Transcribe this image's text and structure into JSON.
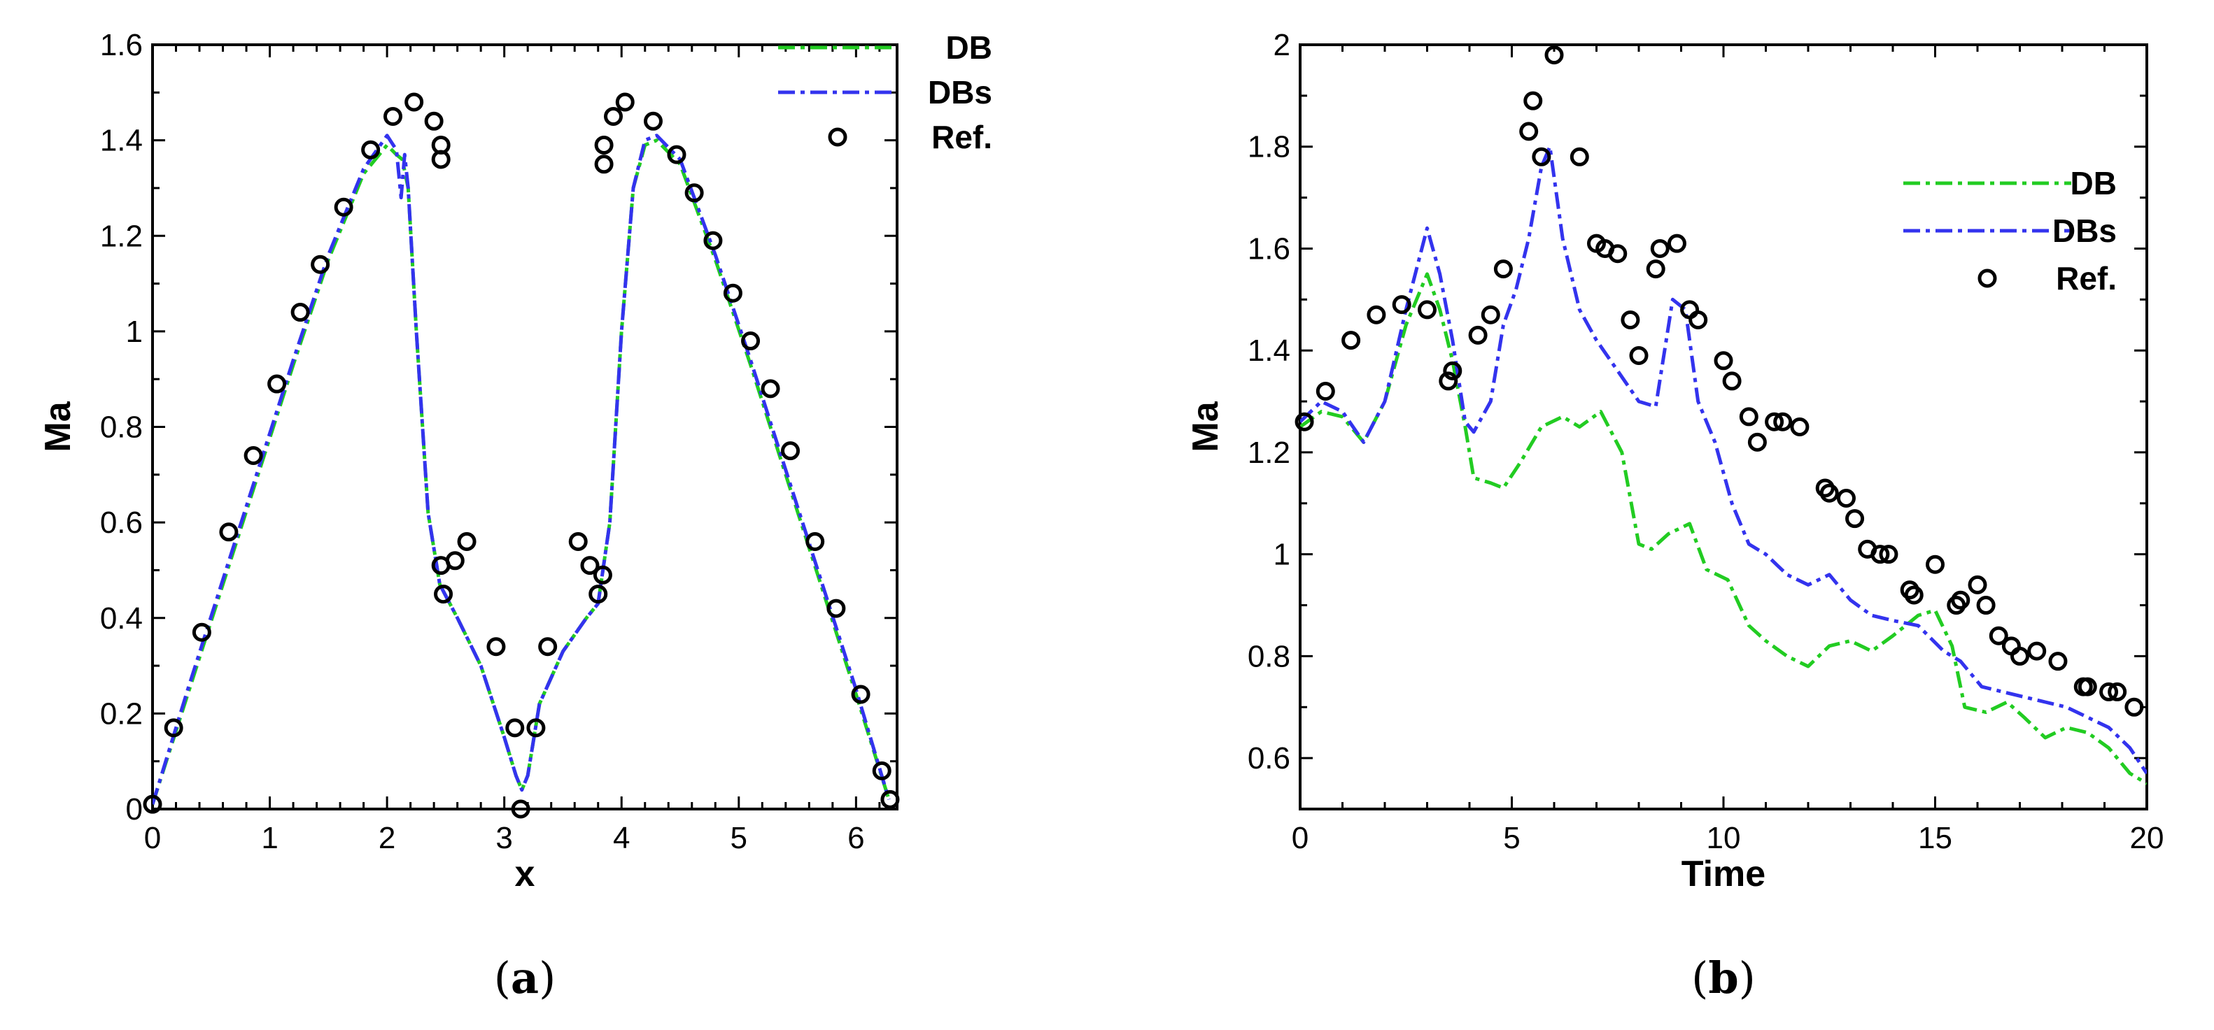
{
  "colors": {
    "db": "#22cc22",
    "dbs": "#3333ee",
    "ref": "#000000"
  },
  "chart_data": [
    {
      "type": "line",
      "panel": "a",
      "caption_open": "(",
      "caption_letter": "a",
      "caption_close": ")",
      "xlabel": "x",
      "ylabel": "Ma",
      "xlim": [
        0,
        6.35
      ],
      "ylim": [
        0,
        1.6
      ],
      "xticks": [
        0,
        1,
        2,
        3,
        4,
        5,
        6
      ],
      "xtick_labels": [
        "0",
        "1",
        "2",
        "3",
        "4",
        "5",
        "6"
      ],
      "yticks": [
        0,
        0.2,
        0.4,
        0.6,
        0.8,
        1,
        1.2,
        1.4,
        1.6
      ],
      "ytick_labels": [
        "0",
        "0.2",
        "0.4",
        "0.6",
        "0.8",
        "1",
        "1.2",
        "1.4",
        "1.6"
      ],
      "legend": {
        "position": "top-right",
        "entries": [
          "DB",
          "DBs",
          "Ref."
        ]
      },
      "series": [
        {
          "name": "DB",
          "style": "dash-dot",
          "x": [
            0,
            0.3,
            0.6,
            0.9,
            1.2,
            1.5,
            1.8,
            2.0,
            2.08,
            2.13,
            2.18,
            2.25,
            2.35,
            2.45,
            2.6,
            2.8,
            3.0,
            3.1,
            3.15,
            3.2,
            3.3,
            3.5,
            3.7,
            3.8,
            3.9,
            4.0,
            4.1,
            4.2,
            4.3,
            4.5,
            4.8,
            5.1,
            5.4,
            5.7,
            6.0,
            6.28
          ],
          "y": [
            0.01,
            0.24,
            0.47,
            0.7,
            0.93,
            1.15,
            1.33,
            1.39,
            1.37,
            1.36,
            1.3,
            1.0,
            0.62,
            0.47,
            0.4,
            0.3,
            0.15,
            0.07,
            0.04,
            0.07,
            0.22,
            0.33,
            0.4,
            0.43,
            0.6,
            1.0,
            1.3,
            1.39,
            1.4,
            1.35,
            1.15,
            0.93,
            0.7,
            0.47,
            0.24,
            0.02
          ]
        },
        {
          "name": "DBs",
          "style": "dash-dot",
          "x": [
            0,
            0.3,
            0.6,
            0.9,
            1.2,
            1.5,
            1.8,
            2.0,
            2.08,
            2.12,
            2.15,
            2.18,
            2.25,
            2.35,
            2.45,
            2.6,
            2.8,
            3.0,
            3.1,
            3.15,
            3.2,
            3.3,
            3.5,
            3.7,
            3.8,
            3.9,
            4.0,
            4.1,
            4.2,
            4.3,
            4.5,
            4.8,
            5.1,
            5.4,
            5.7,
            6.0,
            6.28
          ],
          "y": [
            0.01,
            0.25,
            0.48,
            0.71,
            0.94,
            1.16,
            1.34,
            1.41,
            1.38,
            1.28,
            1.37,
            1.3,
            1.0,
            0.62,
            0.47,
            0.4,
            0.3,
            0.15,
            0.07,
            0.04,
            0.07,
            0.22,
            0.33,
            0.4,
            0.43,
            0.6,
            1.0,
            1.3,
            1.4,
            1.41,
            1.36,
            1.16,
            0.94,
            0.71,
            0.48,
            0.25,
            0.02
          ]
        },
        {
          "name": "Ref.",
          "style": "markers",
          "x": [
            0.0,
            0.18,
            0.42,
            0.65,
            0.86,
            1.06,
            1.26,
            1.43,
            1.63,
            1.86,
            2.05,
            2.23,
            2.4,
            2.46,
            2.46,
            2.46,
            2.48,
            2.58,
            2.68,
            2.93,
            3.09,
            3.14,
            3.27,
            3.37,
            3.63,
            3.73,
            3.8,
            3.84,
            3.85,
            3.85,
            3.93,
            4.03,
            4.27,
            4.47,
            4.62,
            4.78,
            4.95,
            5.1,
            5.27,
            5.44,
            5.65,
            5.83,
            6.04,
            6.22,
            6.29
          ],
          "y": [
            0.01,
            0.17,
            0.37,
            0.58,
            0.74,
            0.89,
            1.04,
            1.14,
            1.26,
            1.38,
            1.45,
            1.48,
            1.44,
            1.39,
            1.36,
            0.51,
            0.45,
            0.52,
            0.56,
            0.34,
            0.17,
            0.0,
            0.17,
            0.34,
            0.56,
            0.51,
            0.45,
            0.49,
            1.39,
            1.35,
            1.45,
            1.48,
            1.44,
            1.37,
            1.29,
            1.19,
            1.08,
            0.98,
            0.88,
            0.75,
            0.56,
            0.42,
            0.24,
            0.08,
            0.02
          ]
        }
      ]
    },
    {
      "type": "line",
      "panel": "b",
      "caption_open": "(",
      "caption_letter": "b",
      "caption_close": ")",
      "xlabel": "Time",
      "ylabel": "Ma",
      "xlim": [
        0,
        20
      ],
      "ylim": [
        0.5,
        2.0
      ],
      "xticks": [
        0,
        5,
        10,
        15,
        20
      ],
      "xtick_labels": [
        "0",
        "5",
        "10",
        "15",
        "20"
      ],
      "yticks": [
        0.6,
        0.8,
        1.0,
        1.2,
        1.4,
        1.6,
        1.8,
        2.0
      ],
      "ytick_labels": [
        "0.6",
        "0.8",
        "1",
        "1.2",
        "1.4",
        "1.6",
        "1.8",
        "2"
      ],
      "legend": {
        "position": "top-right",
        "entries": [
          "DB",
          "DBs",
          "Ref."
        ]
      },
      "series": [
        {
          "name": "DB",
          "style": "dash-dot",
          "x": [
            0,
            0.5,
            1.0,
            1.5,
            2.0,
            2.5,
            3.0,
            3.3,
            3.6,
            3.9,
            4.1,
            4.5,
            4.8,
            5.2,
            5.7,
            6.2,
            6.6,
            7.1,
            7.6,
            8.0,
            8.3,
            8.7,
            9.2,
            9.6,
            10.1,
            10.6,
            11.0,
            11.5,
            12.0,
            12.5,
            13.0,
            13.5,
            14.0,
            14.6,
            15.0,
            15.4,
            15.7,
            16.2,
            16.7,
            17.1,
            17.6,
            18.1,
            18.6,
            19.1,
            19.6,
            20.0
          ],
          "y": [
            1.25,
            1.28,
            1.27,
            1.22,
            1.3,
            1.45,
            1.55,
            1.48,
            1.38,
            1.25,
            1.15,
            1.14,
            1.13,
            1.18,
            1.25,
            1.27,
            1.25,
            1.28,
            1.2,
            1.02,
            1.01,
            1.04,
            1.06,
            0.97,
            0.95,
            0.86,
            0.83,
            0.8,
            0.78,
            0.82,
            0.83,
            0.81,
            0.84,
            0.88,
            0.89,
            0.82,
            0.7,
            0.69,
            0.71,
            0.68,
            0.64,
            0.66,
            0.65,
            0.62,
            0.57,
            0.55
          ]
        },
        {
          "name": "DBs",
          "style": "dash-dot",
          "x": [
            0,
            0.5,
            1.0,
            1.5,
            2.0,
            2.5,
            3.0,
            3.3,
            3.6,
            3.9,
            4.1,
            4.5,
            4.8,
            5.1,
            5.4,
            5.7,
            5.9,
            6.2,
            6.6,
            7.0,
            7.5,
            8.0,
            8.4,
            8.8,
            9.1,
            9.4,
            9.8,
            10.2,
            10.6,
            11.0,
            11.5,
            12.0,
            12.5,
            13.0,
            13.5,
            14.0,
            14.6,
            15.2,
            15.6,
            16.1,
            16.6,
            17.1,
            17.6,
            18.1,
            18.6,
            19.1,
            19.6,
            20.0
          ],
          "y": [
            1.26,
            1.3,
            1.28,
            1.22,
            1.3,
            1.48,
            1.64,
            1.55,
            1.42,
            1.26,
            1.24,
            1.3,
            1.45,
            1.52,
            1.62,
            1.76,
            1.8,
            1.62,
            1.48,
            1.42,
            1.36,
            1.3,
            1.29,
            1.5,
            1.48,
            1.3,
            1.22,
            1.1,
            1.02,
            1.0,
            0.96,
            0.94,
            0.96,
            0.91,
            0.88,
            0.87,
            0.86,
            0.81,
            0.79,
            0.74,
            0.73,
            0.72,
            0.71,
            0.7,
            0.68,
            0.66,
            0.62,
            0.57
          ]
        },
        {
          "name": "Ref.",
          "style": "markers",
          "x": [
            0.1,
            0.6,
            1.2,
            1.8,
            2.4,
            3.0,
            3.5,
            3.6,
            4.2,
            4.5,
            4.8,
            5.4,
            5.5,
            5.7,
            6.0,
            6.6,
            7.0,
            7.2,
            7.5,
            7.8,
            8.0,
            8.4,
            8.5,
            8.9,
            9.2,
            9.4,
            10.0,
            10.2,
            10.6,
            10.8,
            11.2,
            11.4,
            11.8,
            12.4,
            12.5,
            12.9,
            13.1,
            13.4,
            13.7,
            13.9,
            14.4,
            14.5,
            15.0,
            15.5,
            15.6,
            16.0,
            16.2,
            16.5,
            16.8,
            17.0,
            17.4,
            17.9,
            18.5,
            18.6,
            19.1,
            19.3,
            19.7
          ],
          "y": [
            1.26,
            1.32,
            1.42,
            1.47,
            1.49,
            1.48,
            1.34,
            1.36,
            1.43,
            1.47,
            1.56,
            1.83,
            1.89,
            1.78,
            1.98,
            1.78,
            1.61,
            1.6,
            1.59,
            1.46,
            1.39,
            1.56,
            1.6,
            1.61,
            1.48,
            1.46,
            1.38,
            1.34,
            1.27,
            1.22,
            1.26,
            1.26,
            1.25,
            1.13,
            1.12,
            1.11,
            1.07,
            1.01,
            1.0,
            1.0,
            0.93,
            0.92,
            0.98,
            0.9,
            0.91,
            0.94,
            0.9,
            0.84,
            0.82,
            0.8,
            0.81,
            0.79,
            0.74,
            0.74,
            0.73,
            0.73,
            0.7
          ]
        }
      ]
    }
  ]
}
